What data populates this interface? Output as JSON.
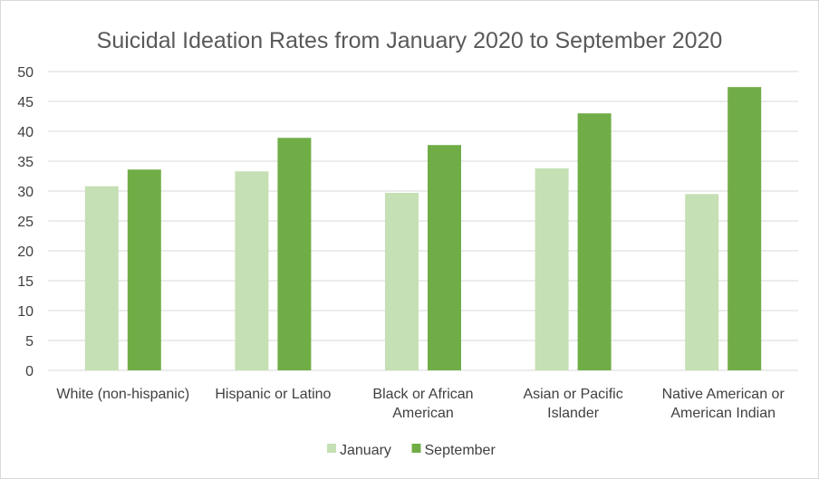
{
  "chart_data": {
    "type": "bar",
    "title": "Suicidal Ideation Rates from January 2020 to September 2020",
    "xlabel": "",
    "ylabel": "",
    "categories": [
      [
        "White (non-hispanic)"
      ],
      [
        "Hispanic or Latino"
      ],
      [
        "Black or African",
        "American"
      ],
      [
        "Asian or Pacific",
        "Islander"
      ],
      [
        "Native American or",
        "American Indian"
      ]
    ],
    "series": [
      {
        "name": "January",
        "color": "#c5e0b4",
        "values": [
          30.8,
          33.3,
          29.7,
          33.8,
          29.5
        ]
      },
      {
        "name": "September",
        "color": "#70ad47",
        "values": [
          33.6,
          38.9,
          37.7,
          43.0,
          47.4
        ]
      }
    ],
    "ylim": [
      0,
      50
    ],
    "yticks": [
      0,
      5,
      10,
      15,
      20,
      25,
      30,
      35,
      40,
      45,
      50
    ],
    "grid": true,
    "legend_position": "bottom"
  }
}
